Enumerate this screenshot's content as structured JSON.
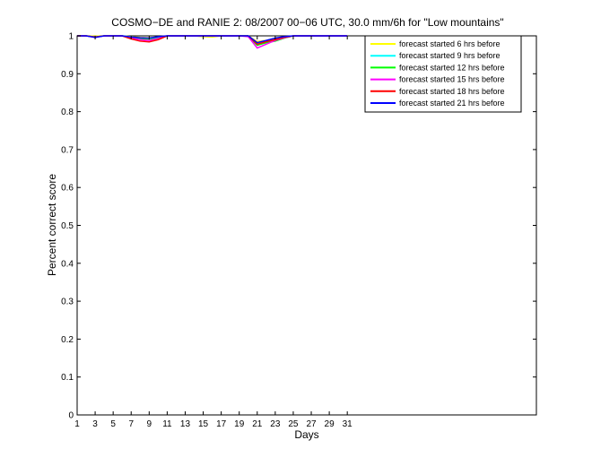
{
  "chart_data": {
    "type": "line",
    "title": "COSMO−DE and RANIE 2: 08/2007 00−06 UTC, 30.0 mm/6h for \"Low mountains\"",
    "xlabel": "Days",
    "ylabel": "Percent correct score",
    "xlim": [
      1,
      52
    ],
    "ylim": [
      0,
      1
    ],
    "xticks": [
      1,
      3,
      5,
      7,
      9,
      11,
      13,
      15,
      17,
      19,
      21,
      23,
      25,
      27,
      29,
      31
    ],
    "yticks": [
      0,
      0.1,
      0.2,
      0.3,
      0.4,
      0.5,
      0.6,
      0.7,
      0.8,
      0.9,
      1
    ],
    "ytick_labels": [
      "0",
      "0.1",
      "0.2",
      "0.3",
      "0.4",
      "0.5",
      "0.6",
      "0.7",
      "0.8",
      "0.9",
      "1"
    ],
    "grid": false,
    "legend_position": "top-right",
    "x": [
      1,
      2,
      3,
      4,
      5,
      6,
      7,
      8,
      9,
      10,
      11,
      12,
      13,
      14,
      15,
      16,
      17,
      18,
      19,
      20,
      21,
      22,
      23,
      24,
      25,
      26,
      27,
      28,
      29,
      30,
      31
    ],
    "series": [
      {
        "name": "forecast started 6 hrs before",
        "color": "#ffff00",
        "values": [
          1,
          1,
          0.999,
          1,
          1,
          1,
          0.998,
          0.996,
          0.995,
          0.997,
          1,
          1,
          1,
          1,
          0.998,
          0.997,
          1,
          1,
          1,
          1,
          0.985,
          0.988,
          0.992,
          0.996,
          1,
          1,
          1,
          1,
          1,
          1,
          1
        ]
      },
      {
        "name": "forecast started 9 hrs before",
        "color": "#00ffff",
        "values": [
          1,
          1,
          0.997,
          1,
          1,
          1,
          0.997,
          0.994,
          0.992,
          0.995,
          1,
          1,
          1,
          1,
          1,
          1,
          1,
          1,
          1,
          1,
          0.979,
          0.984,
          0.99,
          0.995,
          1,
          1,
          1,
          1,
          1,
          1,
          1
        ]
      },
      {
        "name": "forecast started 12 hrs before",
        "color": "#00ff00",
        "values": [
          1,
          1,
          0.997,
          1,
          1,
          1,
          0.996,
          0.993,
          0.99,
          0.994,
          1,
          1,
          1,
          1,
          1,
          1,
          1,
          1,
          1,
          1,
          0.975,
          0.982,
          0.986,
          0.994,
          1,
          1,
          1,
          1,
          1,
          1,
          1
        ]
      },
      {
        "name": "forecast started 15 hrs before",
        "color": "#ff00ff",
        "values": [
          1,
          1,
          0.996,
          1,
          1,
          1,
          0.994,
          0.99,
          0.988,
          0.993,
          1,
          1,
          1,
          1,
          1,
          1,
          1,
          1,
          1,
          0.998,
          0.968,
          0.978,
          0.988,
          0.995,
          1,
          1,
          1,
          1,
          1,
          1,
          1
        ]
      },
      {
        "name": "forecast started 18 hrs before",
        "color": "#ff0000",
        "values": [
          1,
          1,
          0.997,
          1,
          1,
          1,
          0.992,
          0.986,
          0.984,
          0.99,
          1,
          1,
          1,
          1,
          1,
          1,
          1,
          1,
          1,
          1,
          0.978,
          0.985,
          0.99,
          0.996,
          1,
          1,
          1,
          1,
          1,
          1,
          1
        ]
      },
      {
        "name": "forecast started 21 hrs before",
        "color": "#0000ff",
        "values": [
          1,
          1,
          0.996,
          1,
          1,
          1,
          0.997,
          0.995,
          0.994,
          0.998,
          1,
          1,
          1,
          1,
          1,
          1,
          1,
          1,
          1,
          1,
          0.982,
          0.988,
          0.994,
          0.998,
          1,
          1,
          1,
          1,
          1,
          1,
          1
        ]
      }
    ]
  }
}
